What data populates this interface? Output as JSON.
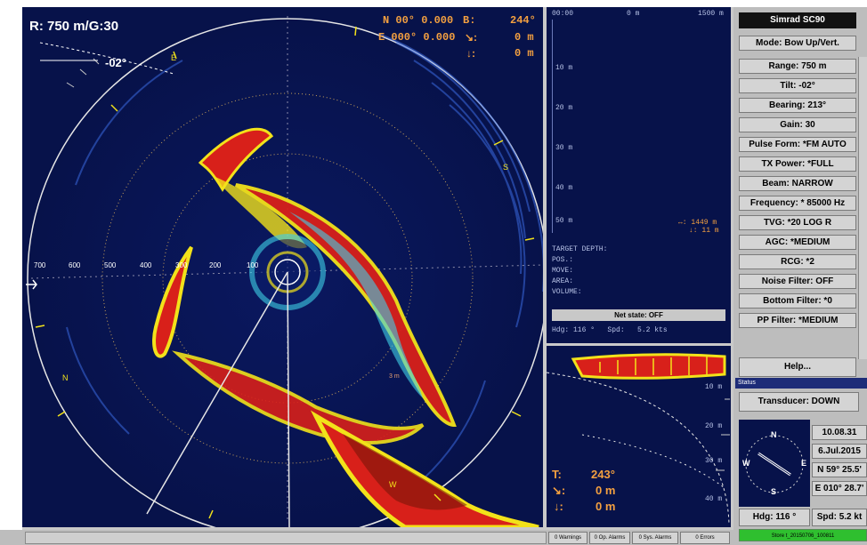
{
  "sonar": {
    "range_label": "R: 750 m/G:30",
    "tilt_label": "-02°",
    "pos_line1": "N 00° 0.000",
    "pos_line2": "E 000° 0.000",
    "b_label": "B:",
    "b_value": "244°",
    "slant_value": "0 m",
    "depth_value": "0 m",
    "range_rings": [
      "700",
      "600",
      "500",
      "400",
      "300",
      "200",
      "100"
    ],
    "compass_letters": [
      "E",
      "S",
      "W",
      "N"
    ],
    "track_label": "3 m"
  },
  "echogram": {
    "time_start": "00:00",
    "distance_start": "0 m",
    "distance_end": "1500 m",
    "depth_labels": [
      "10 m",
      "20 m",
      "30 m",
      "40 m",
      "50 m"
    ],
    "marker_range": "↔: 1449 m",
    "marker_depth": "↓: 11 m",
    "info_lines": [
      "TARGET DEPTH:",
      "POS.:",
      "MOVE:",
      "AREA:",
      "VOLUME:"
    ],
    "net_state": "Net state: OFF",
    "heading_speed": "Hdg: 116 °   Spd:   5.2 kts"
  },
  "minisonar": {
    "depth_labels": [
      "10 m",
      "20 m",
      "30 m",
      "40 m"
    ],
    "t_label": "T:",
    "t_value": "243°",
    "slant_value": "0 m",
    "depth_value": "0 m"
  },
  "panel": {
    "title": "Simrad SC90",
    "buttons": [
      "Mode: Bow Up/Vert.",
      "Range: 750 m",
      "Tilt: -02°",
      "Bearing: 213°",
      "Gain: 30",
      "Pulse Form: *FM AUTO",
      "TX Power: *FULL",
      "Beam: NARROW",
      "Frequency: * 85000 Hz",
      "TVG: *20 LOG R",
      "AGC: *MEDIUM",
      "RCG: *2",
      "Noise Filter: OFF",
      "Bottom Filter: *0",
      "PP Filter: *MEDIUM"
    ],
    "help": "Help...",
    "status_header": "Status",
    "transducer": "Transducer: DOWN",
    "time": "10.08.31",
    "date": "6.Jul.2015",
    "lat": "N 59° 25.5'",
    "lon": "E 010° 28.7'",
    "hdg": "Hdg: 116 °",
    "spd": "Spd: 5.2 kt",
    "store": "Store t_20150706_100811",
    "compass_letters": [
      "N",
      "E",
      "S",
      "W"
    ]
  },
  "bottom_bar": {
    "warnings": "0 Warnings",
    "op_alarms": "0 Op. Alarms",
    "sys_alarms": "0 Sys. Alarms",
    "errors": "0 Errors"
  },
  "colors": {
    "sonar_bg": "#07124a",
    "echo_red": "#d8201a",
    "echo_yellow": "#f2e21a",
    "echo_blue": "#2a5be0",
    "text_orange": "#f4a040",
    "store_green": "#2fbf2f"
  }
}
